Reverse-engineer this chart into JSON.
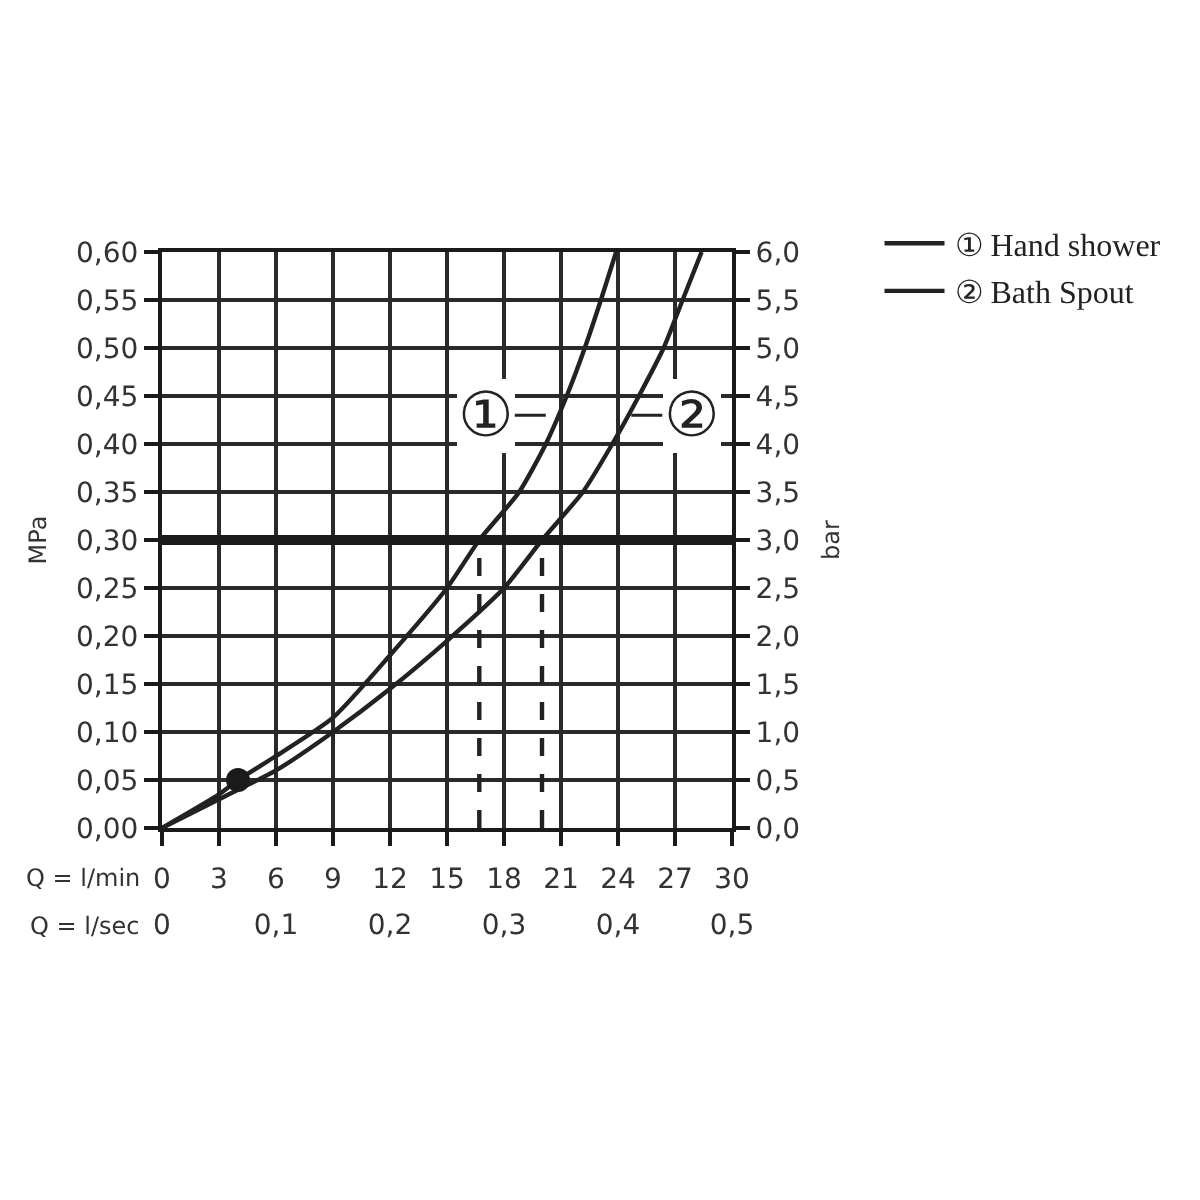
{
  "chart_data": {
    "type": "line",
    "xlabel": "Q = l/min",
    "x2label": "Q = l/sec",
    "ylabel": "MPa",
    "y2label": "bar",
    "xlim": [
      0,
      30
    ],
    "xticks": [
      0,
      3,
      6,
      9,
      12,
      15,
      18,
      21,
      24,
      27,
      30
    ],
    "x2lim": [
      0,
      0.5
    ],
    "x2ticks": [
      0,
      {
        "value": 0.1,
        "label": "0,1"
      },
      {
        "value": 0.2,
        "label": "0,2"
      },
      {
        "value": 0.3,
        "label": "0,3"
      },
      {
        "value": 0.4,
        "label": "0,4"
      },
      {
        "value": 0.5,
        "label": "0,5"
      }
    ],
    "ylim": [
      0,
      0.6
    ],
    "yticks": [
      {
        "value": 0,
        "label": "0,00"
      },
      {
        "value": 0.05,
        "label": "0,05"
      },
      {
        "value": 0.1,
        "label": "0,10"
      },
      {
        "value": 0.15,
        "label": "0,15"
      },
      {
        "value": 0.2,
        "label": "0,20"
      },
      {
        "value": 0.25,
        "label": "0,25"
      },
      {
        "value": 0.3,
        "label": "0,30"
      },
      {
        "value": 0.35,
        "label": "0,35"
      },
      {
        "value": 0.4,
        "label": "0,40"
      },
      {
        "value": 0.45,
        "label": "0,45"
      },
      {
        "value": 0.5,
        "label": "0,50"
      },
      {
        "value": 0.55,
        "label": "0,55"
      },
      {
        "value": 0.6,
        "label": "0,60"
      }
    ],
    "y2lim": [
      0,
      6
    ],
    "y2ticks": [
      {
        "value": 0,
        "label": "0,0"
      },
      {
        "value": 0.5,
        "label": "0,5"
      },
      {
        "value": 1,
        "label": "1,0"
      },
      {
        "value": 1.5,
        "label": "1,5"
      },
      {
        "value": 2,
        "label": "2,0"
      },
      {
        "value": 2.5,
        "label": "2,5"
      },
      {
        "value": 3,
        "label": "3,0"
      },
      {
        "value": 3.5,
        "label": "3,5"
      },
      {
        "value": 4,
        "label": "4,0"
      },
      {
        "value": 4.5,
        "label": "4,5"
      },
      {
        "value": 5,
        "label": "5,0"
      },
      {
        "value": 5.5,
        "label": "5,5"
      },
      {
        "value": 6,
        "label": "6,0"
      }
    ],
    "grid": true,
    "legend": "top right",
    "marker": "none",
    "line_style": "solid",
    "series": [
      {
        "name": "① Hand shower",
        "color": "#222222",
        "x": [
          0,
          3,
          4,
          6,
          9,
          12,
          15,
          16.7,
          18.8,
          20.2,
          21.3,
          22.25,
          23.1,
          23.9
        ],
        "values": [
          0,
          0.035,
          0.05,
          0.075,
          0.115,
          0.18,
          0.25,
          0.3,
          0.35,
          0.4,
          0.45,
          0.5,
          0.55,
          0.6
        ]
      },
      {
        "name": "② Bath Spout",
        "color": "#222222",
        "x": [
          0,
          3,
          6,
          9,
          12,
          15,
          18,
          20,
          22.15,
          23.7,
          25.1,
          26.4,
          27.4,
          28.4
        ],
        "values": [
          0,
          0.03,
          0.06,
          0.1,
          0.145,
          0.195,
          0.25,
          0.3,
          0.35,
          0.4,
          0.45,
          0.5,
          0.55,
          0.6
        ]
      },
      {
        "type": "scatter",
        "marker": "circle",
        "color": "#1a1a1a",
        "x": [
          4
        ],
        "values": [
          0.05
        ]
      },
      {
        "line_style": "dashed",
        "color": "#222222",
        "x": [
          16.7,
          16.7
        ],
        "values": [
          0,
          0.3
        ]
      },
      {
        "line_style": "dashed",
        "color": "#222222",
        "x": [
          20,
          20
        ],
        "values": [
          0,
          0.3
        ]
      }
    ],
    "ref_lines": [
      {
        "axis": "y",
        "value": 0.3,
        "color": "#1a1a1a"
      }
    ],
    "annotations": [
      {
        "text": "①",
        "x": 20.2,
        "y": 0.43
      },
      {
        "text": "②",
        "x": 24.7,
        "y": 0.43
      }
    ]
  }
}
